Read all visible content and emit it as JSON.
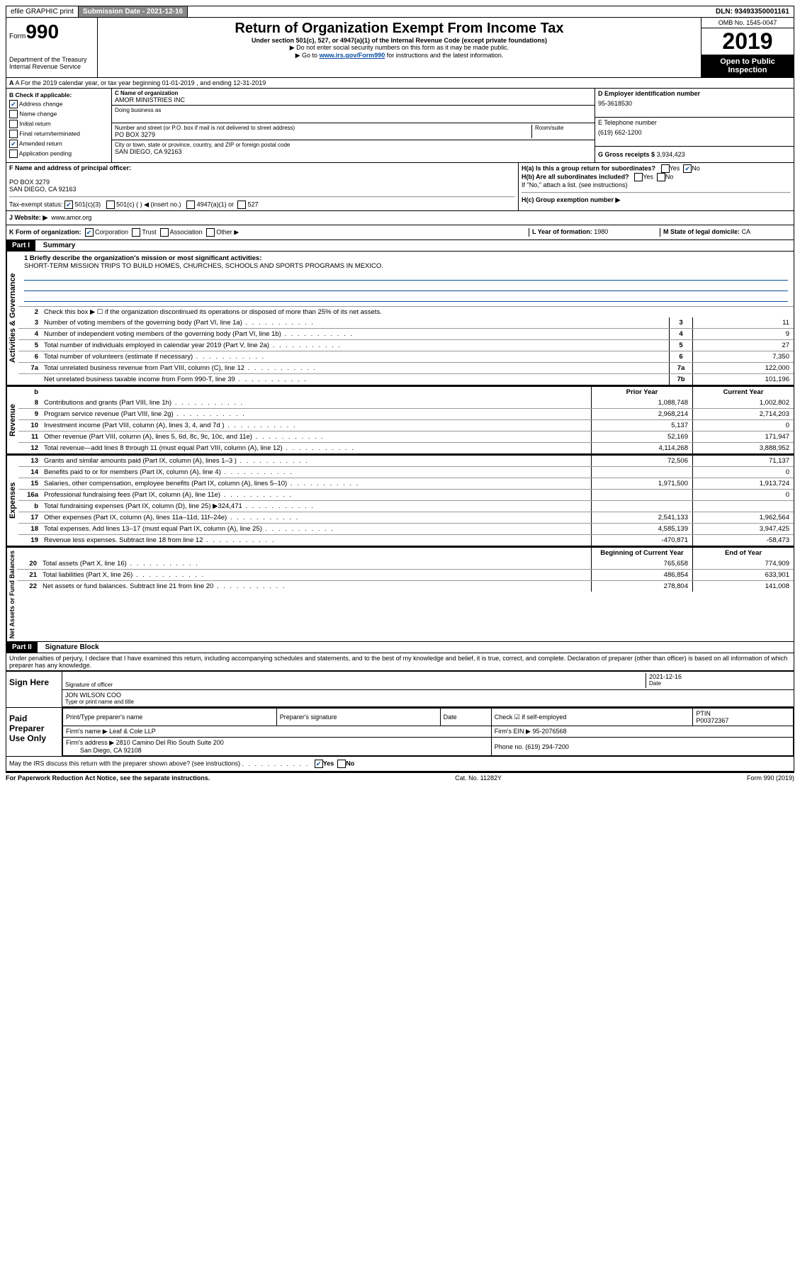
{
  "topbar": {
    "efile": "efile GRAPHIC print",
    "submission_label": "Submission Date - 2021-12-16",
    "dln": "DLN: 93493350001161"
  },
  "header": {
    "form_word": "Form",
    "form_num": "990",
    "dept": "Department of the Treasury\nInternal Revenue Service",
    "main_title": "Return of Organization Exempt From Income Tax",
    "sub1": "Under section 501(c), 527, or 4947(a)(1) of the Internal Revenue Code (except private foundations)",
    "sub2": "▶ Do not enter social security numbers on this form as it may be made public.",
    "sub3_pre": "▶ Go to ",
    "sub3_link": "www.irs.gov/Form990",
    "sub3_post": " for instructions and the latest information.",
    "omb": "OMB No. 1545-0047",
    "year": "2019",
    "open_public": "Open to Public Inspection"
  },
  "row_a": "A For the 2019 calendar year, or tax year beginning 01-01-2019    , and ending 12-31-2019",
  "section_b": {
    "check_label": "B Check if applicable:",
    "address_change": "Address change",
    "name_change": "Name change",
    "initial_return": "Initial return",
    "final_return": "Final return/terminated",
    "amended": "Amended return",
    "application": "Application pending",
    "c_label": "C Name of organization",
    "c_name": "AMOR MINISTRIES INC",
    "dba": "Doing business as",
    "addr_label": "Number and street (or P.O. box if mail is not delivered to street address)",
    "addr": "PO BOX 3279",
    "room": "Room/suite",
    "city_label": "City or town, state or province, country, and ZIP or foreign postal code",
    "city": "SAN DIEGO, CA  92163",
    "d_label": "D Employer identification number",
    "d_val": "95-3618530",
    "e_label": "E Telephone number",
    "e_val": "(619) 662-1200",
    "g_label": "G Gross receipts $",
    "g_val": "3,934,423"
  },
  "row_f": {
    "f_label": "F  Name and address of principal officer:",
    "f_addr1": "PO BOX 3279",
    "f_addr2": "SAN DIEGO, CA  92163",
    "ha_label": "H(a)  Is this a group return for subordinates?",
    "hb_label": "H(b)  Are all subordinates included?",
    "h_note": "If \"No,\" attach a list. (see instructions)",
    "hc_label": "H(c)  Group exemption number ▶",
    "yes": "Yes",
    "no": "No"
  },
  "tax_status": {
    "label": "Tax-exempt status:",
    "s1": "501(c)(3)",
    "s2": "501(c) (   ) ◀ (insert no.)",
    "s3": "4947(a)(1) or",
    "s4": "527"
  },
  "website": {
    "label": "J  Website: ▶",
    "val": "www.amor.org"
  },
  "korg": {
    "label": "K Form of organization:",
    "corp": "Corporation",
    "trust": "Trust",
    "assoc": "Association",
    "other": "Other ▶",
    "l_label": "L Year of formation:",
    "l_val": "1980",
    "m_label": "M State of legal domicile:",
    "m_val": "CA"
  },
  "part1": {
    "header": "Part I",
    "title": "Summary",
    "line1_label": "1  Briefly describe the organization's mission or most significant activities:",
    "line1_text": "SHORT-TERM MISSION TRIPS TO BUILD HOMES, CHURCHES, SCHOOLS AND SPORTS PROGRAMS IN MEXICO.",
    "line2": "Check this box ▶ ☐  if the organization discontinued its operations or disposed of more than 25% of its net assets.",
    "sections": {
      "gov_label": "Activities & Governance",
      "rev_label": "Revenue",
      "exp_label": "Expenses",
      "net_label": "Net Assets or Fund Balances"
    },
    "gov_lines": [
      {
        "n": "3",
        "d": "Number of voting members of the governing body (Part VI, line 1a)",
        "c": "3",
        "v": "11"
      },
      {
        "n": "4",
        "d": "Number of independent voting members of the governing body (Part VI, line 1b)",
        "c": "4",
        "v": "9"
      },
      {
        "n": "5",
        "d": "Total number of individuals employed in calendar year 2019 (Part V, line 2a)",
        "c": "5",
        "v": "27"
      },
      {
        "n": "6",
        "d": "Total number of volunteers (estimate if necessary)",
        "c": "6",
        "v": "7,350"
      },
      {
        "n": "7a",
        "d": "Total unrelated business revenue from Part VIII, column (C), line 12",
        "c": "7a",
        "v": "122,000"
      },
      {
        "n": "",
        "d": "Net unrelated business taxable income from Form 990-T, line 39",
        "c": "7b",
        "v": "101,196"
      }
    ],
    "year_header": {
      "n": "b",
      "prior": "Prior Year",
      "current": "Current Year"
    },
    "rev_lines": [
      {
        "n": "8",
        "d": "Contributions and grants (Part VIII, line 1h)",
        "p": "1,088,748",
        "c": "1,002,802"
      },
      {
        "n": "9",
        "d": "Program service revenue (Part VIII, line 2g)",
        "p": "2,968,214",
        "c": "2,714,203"
      },
      {
        "n": "10",
        "d": "Investment income (Part VIII, column (A), lines 3, 4, and 7d )",
        "p": "5,137",
        "c": "0"
      },
      {
        "n": "11",
        "d": "Other revenue (Part VIII, column (A), lines 5, 6d, 8c, 9c, 10c, and 11e)",
        "p": "52,169",
        "c": "171,947"
      },
      {
        "n": "12",
        "d": "Total revenue—add lines 8 through 11 (must equal Part VIII, column (A), line 12)",
        "p": "4,114,268",
        "c": "3,888,952"
      }
    ],
    "exp_lines": [
      {
        "n": "13",
        "d": "Grants and similar amounts paid (Part IX, column (A), lines 1–3 )",
        "p": "72,506",
        "c": "71,137"
      },
      {
        "n": "14",
        "d": "Benefits paid to or for members (Part IX, column (A), line 4)",
        "p": "",
        "c": "0"
      },
      {
        "n": "15",
        "d": "Salaries, other compensation, employee benefits (Part IX, column (A), lines 5–10)",
        "p": "1,971,500",
        "c": "1,913,724"
      },
      {
        "n": "16a",
        "d": "Professional fundraising fees (Part IX, column (A), line 11e)",
        "p": "",
        "c": "0"
      },
      {
        "n": "b",
        "d": "Total fundraising expenses (Part IX, column (D), line 25) ▶324,471",
        "p": "",
        "c": ""
      },
      {
        "n": "17",
        "d": "Other expenses (Part IX, column (A), lines 11a–11d, 11f–24e)",
        "p": "2,541,133",
        "c": "1,962,564"
      },
      {
        "n": "18",
        "d": "Total expenses. Add lines 13–17 (must equal Part IX, column (A), line 25)",
        "p": "4,585,139",
        "c": "3,947,425"
      },
      {
        "n": "19",
        "d": "Revenue less expenses. Subtract line 18 from line 12",
        "p": "-470,871",
        "c": "-58,473"
      }
    ],
    "net_header": {
      "prior": "Beginning of Current Year",
      "current": "End of Year"
    },
    "net_lines": [
      {
        "n": "20",
        "d": "Total assets (Part X, line 16)",
        "p": "765,658",
        "c": "774,909"
      },
      {
        "n": "21",
        "d": "Total liabilities (Part X, line 26)",
        "p": "486,854",
        "c": "633,901"
      },
      {
        "n": "22",
        "d": "Net assets or fund balances. Subtract line 21 from line 20",
        "p": "278,804",
        "c": "141,008"
      }
    ]
  },
  "part2": {
    "header": "Part II",
    "title": "Signature Block",
    "perjury": "Under penalties of perjury, I declare that I have examined this return, including accompanying schedules and statements, and to the best of my knowledge and belief, it is true, correct, and complete. Declaration of preparer (other than officer) is based on all information of which preparer has any knowledge.",
    "sign_here": "Sign Here",
    "sig_officer": "Signature of officer",
    "date": "Date",
    "date_val": "2021-12-16",
    "officer_name": "JON WILSON  COO",
    "type_name": "Type or print name and title",
    "paid_prep": "Paid Preparer Use Only",
    "prep_name_label": "Print/Type preparer's name",
    "prep_sig_label": "Preparer's signature",
    "prep_date_label": "Date",
    "check_self": "Check ☑ if self-employed",
    "ptin_label": "PTIN",
    "ptin_val": "P00372367",
    "firm_name_label": "Firm's name    ▶",
    "firm_name": "Leaf & Cole LLP",
    "firm_ein_label": "Firm's EIN ▶",
    "firm_ein": "95-2076568",
    "firm_addr_label": "Firm's address ▶",
    "firm_addr": "2810 Camino Del Rio South Suite 200",
    "firm_city": "San Diego, CA  92108",
    "phone_label": "Phone no.",
    "phone_val": "(619) 294-7200",
    "discuss": "May the IRS discuss this return with the preparer shown above? (see instructions)",
    "footer_left": "For Paperwork Reduction Act Notice, see the separate instructions.",
    "footer_mid": "Cat. No. 11282Y",
    "footer_right": "Form 990 (2019)"
  }
}
